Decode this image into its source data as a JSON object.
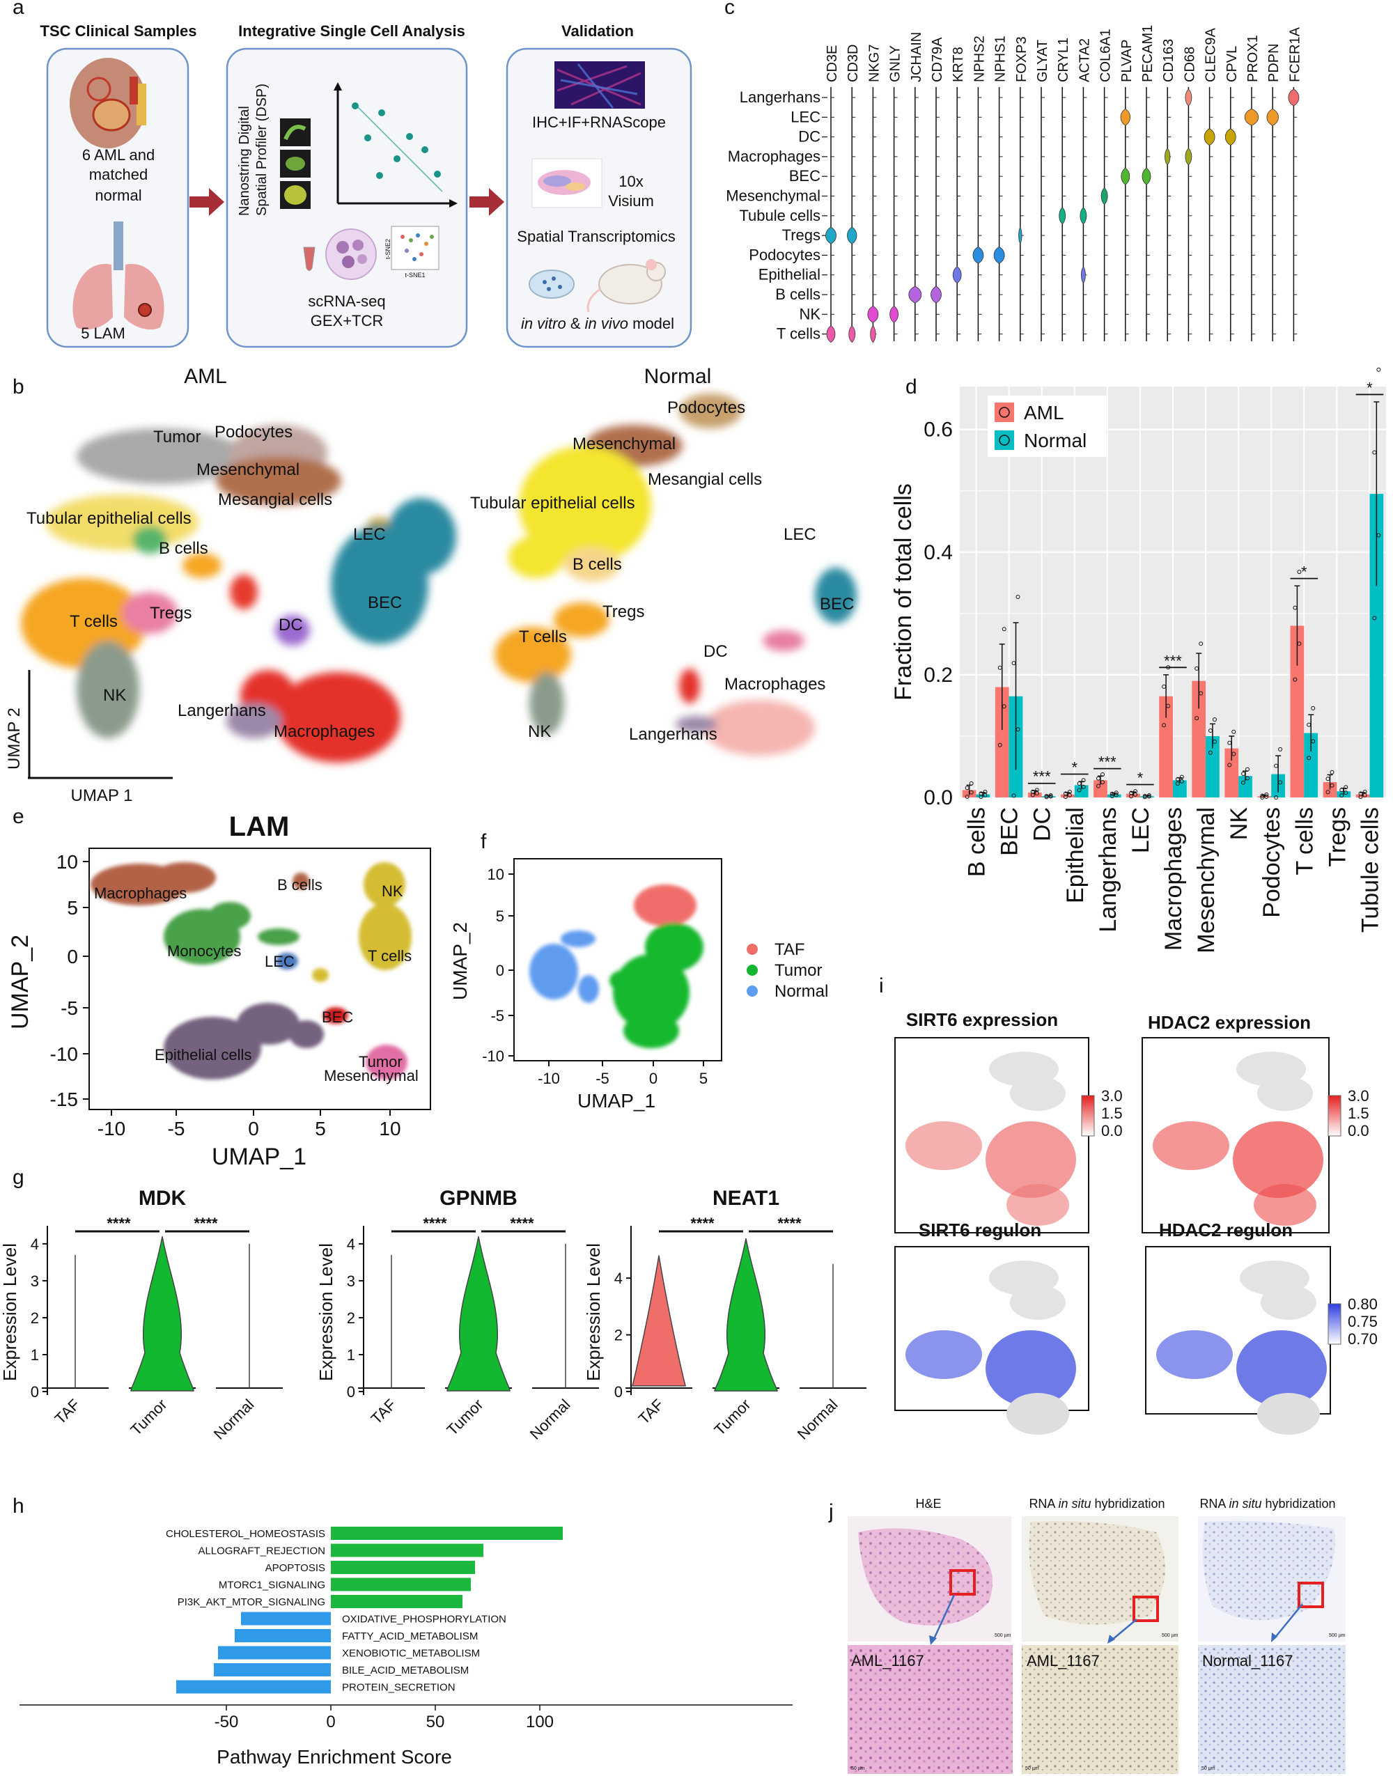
{
  "panel_letters": {
    "a": "a",
    "b": "b",
    "c": "c",
    "d": "d",
    "e": "e",
    "f": "f",
    "g": "g",
    "h": "h",
    "i": "i",
    "j": "j"
  },
  "panel_a": {
    "box1": {
      "title": "TSC Clinical Samples",
      "line1": "6 AML and",
      "line2": "matched",
      "line3": "normal",
      "lam": "5 LAM"
    },
    "box2": {
      "title": "Integrative Single Cell Analysis",
      "dsp1": "Nanostring Digital",
      "dsp2": "Spatial Profiler (DSP)",
      "tsne1": "t-SNE1",
      "tsne2": "t-SNE2",
      "sc1": "scRNA-seq",
      "sc2": "GEX+TCR"
    },
    "box3": {
      "title": "Validation",
      "ihc": "IHC+IF+RNAScope",
      "vis1": "10x",
      "vis2": "Visium",
      "st": "Spatial Transcriptomics",
      "model_a": "in vitro",
      "model_b": " & ",
      "model_c": "in vivo",
      "model_d": " model"
    }
  },
  "panel_b": {
    "aml_title": "AML",
    "normal_title": "Normal",
    "umap1": "UMAP 1",
    "umap2": "UMAP 2",
    "aml_labels": {
      "tumor": "Tumor",
      "podocytes": "Podocytes",
      "mesenchymal": "Mesenchymal",
      "mesangial": "Mesangial cells",
      "tubular": "Tubular epithelial cells",
      "lec": "LEC",
      "bcells": "B cells",
      "tregs": "Tregs",
      "tcells": "T cells",
      "dc": "DC",
      "bec": "BEC",
      "nk": "NK",
      "langerhans": "Langerhans",
      "macrophages": "Macrophages"
    },
    "normal_labels": {
      "podocytes": "Podocytes",
      "mesenchymal": "Mesenchymal",
      "mesangial": "Mesangial cells",
      "tubular": "Tubular epithelial cells",
      "lec": "LEC",
      "bcells": "B cells",
      "tregs": "Tregs",
      "bec": "BEC",
      "tcells": "T cells",
      "dc": "DC",
      "macrophages": "Macrophages",
      "nk": "NK",
      "langerhans": "Langerhans"
    }
  },
  "panel_e": {
    "title": "LAM",
    "xlabel": "UMAP_1",
    "ylabel": "UMAP_2",
    "xticks": [
      "-10",
      "-5",
      "0",
      "5",
      "10"
    ],
    "yticks": [
      "10",
      "5",
      "0",
      "-5",
      "-10",
      "-15"
    ],
    "labels": {
      "macrophages": "Macrophages",
      "bcells": "B cells",
      "nk": "NK",
      "monocytes": "Monocytes",
      "lec": "LEC",
      "tcells": "T cells",
      "bec": "BEC",
      "epithelial": "Epithelial cells",
      "tumor": "Tumor",
      "mesenchymal": "Mesenchymal"
    }
  },
  "panel_f": {
    "xlabel": "UMAP_1",
    "ylabel": "UMAP_2",
    "xticks": [
      "-10",
      "-5",
      "0",
      "5"
    ],
    "yticks": [
      "10",
      "5",
      "0",
      "-5",
      "-10"
    ],
    "legend": [
      {
        "name": "TAF",
        "color": "#f06e6a"
      },
      {
        "name": "Tumor",
        "color": "#12b82f"
      },
      {
        "name": "Normal",
        "color": "#5e9cf0"
      }
    ]
  },
  "panel_i": {
    "sirt6_expr": "SIRT6 expression",
    "hdac2_expr": "HDAC2 expression",
    "sirt6_reg": "SIRT6  regulon",
    "hdac2_reg": "HDAC2  regulon",
    "expr_ticks": [
      "3.0",
      "1.5",
      "0.0"
    ],
    "reg_ticks": [
      "0.80",
      "0.75",
      "0.70"
    ]
  },
  "panel_j": {
    "he": "H&E",
    "rish1a": "RNA ",
    "rish1b": "in situ",
    "rish1c": " hybridization",
    "rish2a": "RNA ",
    "rish2b": "in situ",
    "rish2c": " hybridization",
    "s1": "AML_1167",
    "s2": "AML_1167",
    "s3": "Normal_1167",
    "scale": "500 µm",
    "scale_small": "50 µm"
  },
  "colors": {
    "aml": "#f8766d",
    "normal": "#00bfc4",
    "up": "#1cb83e",
    "down": "#2f9ae8",
    "arrow": "#a62d35",
    "box_border": "#6f95c8"
  },
  "chart_data": [
    {
      "id": "c",
      "type": "violin",
      "genes": [
        "CD3E",
        "CD3D",
        "NKG7",
        "GNLY",
        "JCHAIN",
        "CD79A",
        "KRT8",
        "NPHS2",
        "NPHS1",
        "FOXP3",
        "GLYAT",
        "CRYL1",
        "ACTA2",
        "COL6A1",
        "PLVAP",
        "PECAM1",
        "CD163",
        "CD68",
        "CLEC9A",
        "CPVL",
        "PROX1",
        "PDPN",
        "FCER1A"
      ],
      "cell_types": [
        "Langerhans",
        "LEC",
        "DC",
        "Macrophages",
        "BEC",
        "Mesenchymal",
        "Tubule cells",
        "Tregs",
        "Podocytes",
        "Epithelial",
        "B cells",
        "NK",
        "T cells"
      ]
    },
    {
      "id": "d",
      "type": "bar",
      "ylabel": "Fraction of total cells",
      "ylim": [
        0,
        0.67
      ],
      "yticks": [
        "0.0",
        "0.2",
        "0.4",
        "0.6"
      ],
      "categories": [
        "B cells",
        "BEC",
        "DC",
        "Epithelial",
        "Langerhans",
        "LEC",
        "Macrophages",
        "Mesenchymal",
        "NK",
        "Podocytes",
        "T cells",
        "Tregs",
        "Tubule cells"
      ],
      "series": [
        {
          "name": "AML",
          "values": [
            0.012,
            0.18,
            0.008,
            0.005,
            0.028,
            0.006,
            0.165,
            0.19,
            0.08,
            0.002,
            0.28,
            0.025,
            0.005
          ]
        },
        {
          "name": "Normal",
          "values": [
            0.005,
            0.165,
            0.002,
            0.02,
            0.005,
            0.002,
            0.028,
            0.1,
            0.035,
            0.038,
            0.105,
            0.01,
            0.495
          ]
        }
      ],
      "errors": [
        [
          0.008,
          0.07,
          0.003,
          0.003,
          0.007,
          0.003,
          0.035,
          0.045,
          0.02,
          0.002,
          0.065,
          0.012,
          0.003
        ],
        [
          0.003,
          0.12,
          0.001,
          0.006,
          0.002,
          0.001,
          0.004,
          0.02,
          0.008,
          0.03,
          0.03,
          0.005,
          0.15
        ]
      ],
      "significance": [
        "",
        "",
        "***",
        "*",
        "***",
        "*",
        "***",
        "",
        "",
        "",
        "*",
        "",
        "*"
      ]
    },
    {
      "id": "g",
      "type": "violin",
      "ylabel": "Expression Level",
      "groups": [
        "TAF",
        "Tumor",
        "Normal"
      ],
      "panels": [
        {
          "title": "MDK",
          "yticks": [
            "0",
            "1",
            "2",
            "3",
            "4"
          ],
          "sig": [
            "****",
            "****"
          ]
        },
        {
          "title": "GPNMB",
          "yticks": [
            "0",
            "1",
            "2",
            "3",
            "4"
          ],
          "sig": [
            "****",
            "****"
          ]
        },
        {
          "title": "NEAT1",
          "yticks": [
            "0",
            "2",
            "4"
          ],
          "sig": [
            "****",
            "****"
          ]
        }
      ]
    },
    {
      "id": "h",
      "type": "bar",
      "orientation": "horizontal",
      "xlabel": "Pathway Enrichment Score",
      "xticks": [
        "-50",
        "0",
        "50",
        "100"
      ],
      "categories": [
        "CHOLESTEROL_HOMEOSTASIS",
        "ALLOGRAFT_REJECTION",
        "APOPTOSIS",
        "MTORC1_SIGNALING",
        "PI3K_AKT_MTOR_SIGNALING",
        "OXIDATIVE_PHOSPHORYLATION",
        "FATTY_ACID_METABOLISM",
        "XENOBIOTIC_METABOLISM",
        "BILE_ACID_METABOLISM",
        "PROTEIN_SECRETION"
      ],
      "values": [
        111,
        73,
        69,
        67,
        63,
        -43,
        -46,
        -54,
        -56,
        -74
      ]
    }
  ]
}
